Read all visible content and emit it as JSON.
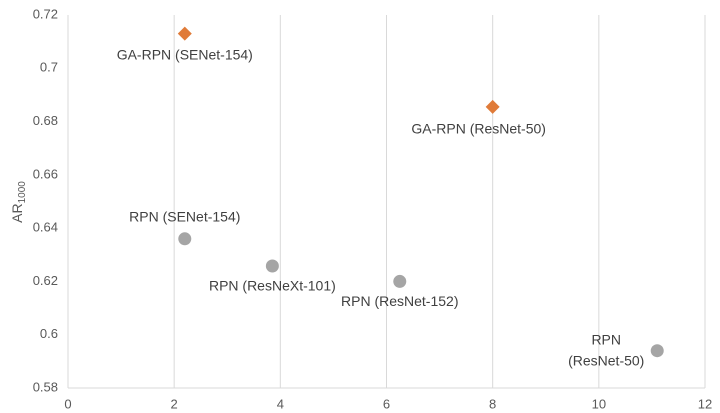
{
  "chart_data": {
    "type": "scatter",
    "ylabel": "AR",
    "ylabel_sub": "1000",
    "xlim": [
      0,
      12
    ],
    "xticks": [
      0,
      2,
      4,
      6,
      8,
      10,
      12
    ],
    "ylim": [
      0.58,
      0.72
    ],
    "yticks": [
      0.58,
      0.6,
      0.62,
      0.64,
      0.66,
      0.68,
      0.7,
      0.72
    ],
    "grid": true,
    "series": [
      {
        "marker": "diamond",
        "color": "#e07b39",
        "x": [
          2.2,
          8.0
        ],
        "values": [
          0.713,
          0.6855
        ],
        "labels": [
          [
            "GA-RPN (SENet-154)"
          ],
          [
            "GA-RPN (ResNet-50)"
          ]
        ]
      },
      {
        "marker": "circle",
        "color": "#a5a5a5",
        "x": [
          2.2,
          3.85,
          6.25,
          11.1
        ],
        "values": [
          0.636,
          0.6258,
          0.62,
          0.594
        ],
        "labels": [
          [
            "RPN (SENet-154)"
          ],
          [
            "RPN (ResNeXt-101)"
          ],
          [
            "RPN (ResNet-152)"
          ],
          [
            "RPN",
            "(ResNet-50)"
          ]
        ]
      }
    ]
  }
}
